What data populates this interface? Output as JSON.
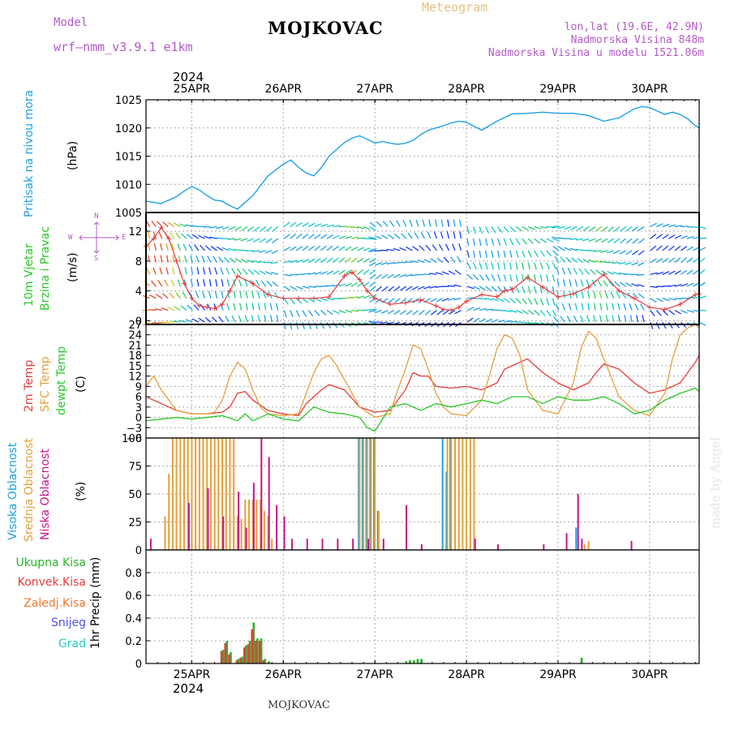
{
  "header": {
    "model_label": "Model",
    "model_name": "wrf–nmm_v3.9.1  e1km",
    "station": "MOJKOVAC",
    "product": "Meteogram",
    "lonlat": "lon,lat (19.6E, 42.9N)",
    "elevation": "Nadmorska Visina 848m",
    "model_elevation": "Nadmorska Visina u modelu 1521.06m",
    "footer_station": "MOJKOVAC",
    "watermark": "made by Angel"
  },
  "time_axis": {
    "year": "2024",
    "days": [
      "25APR",
      "26APR",
      "27APR",
      "28APR",
      "29APR",
      "30APR"
    ],
    "start_hour_offset": -12,
    "end_hour_offset": 133
  },
  "colors": {
    "pressure": "#1ea0e6",
    "temp_2m": "#e63c3c",
    "temp_sfc": "#e6a03c",
    "dewpoint": "#28c828",
    "cloud_high": "#1ea0e6",
    "cloud_mid": "#e6a03c",
    "cloud_low": "#c8148c",
    "rain_total": "#28b428",
    "rain_conv": "#e63c3c",
    "rain_frz": "#f07832",
    "snow": "#5050e6",
    "hail": "#28c8c8"
  },
  "chart_data": [
    {
      "type": "line",
      "ylabel_1": "Pritisak na nivou mora",
      "ylabel_unit": "(hPa)",
      "ylim": [
        1005,
        1025
      ],
      "yticks": [
        "1005",
        "1010",
        "1015",
        "1020",
        "1025"
      ],
      "series": [
        {
          "x": [
            -12,
            -8,
            -4,
            -2,
            0,
            2,
            4,
            6,
            8,
            10,
            12,
            16,
            20,
            24,
            26,
            28,
            30,
            32,
            34,
            36,
            38,
            40,
            42,
            44,
            46,
            48,
            50,
            52,
            54,
            56,
            58,
            60,
            62,
            64,
            66,
            68,
            70,
            72,
            76,
            80,
            84,
            88,
            92,
            96,
            100,
            104,
            108,
            112,
            114,
            116,
            118,
            120,
            122,
            124,
            126,
            128,
            130,
            132,
            133
          ],
          "values": [
            1007,
            1006.6,
            1007.8,
            1008.8,
            1009.6,
            1009,
            1008,
            1007.2,
            1007,
            1006.2,
            1005.6,
            1008,
            1011.5,
            1013.6,
            1014.3,
            1013,
            1012,
            1011.5,
            1013,
            1015,
            1016.2,
            1017.4,
            1018.2,
            1018.6,
            1018,
            1017.3,
            1017.6,
            1017.3,
            1017.1,
            1017.3,
            1017.8,
            1018.8,
            1019.6,
            1020,
            1020.4,
            1020.9,
            1021.2,
            1021,
            1019.6,
            1021.2,
            1022.5,
            1022.6,
            1022.8,
            1022.6,
            1022.6,
            1022.2,
            1021.2,
            1021.8,
            1022.6,
            1023.4,
            1023.8,
            1023.6,
            1023,
            1022.4,
            1022.8,
            1022.4,
            1021.6,
            1020.4,
            1020
          ]
        }
      ]
    },
    {
      "type": "line",
      "ylabel_1": "10m Vjetar",
      "ylabel_2": "Brzina i Pravac",
      "ylabel_unit": "(m/s)",
      "compass": [
        "N",
        "W",
        "E",
        "S"
      ],
      "ylim": [
        -0.5,
        14.5
      ],
      "yticks": [
        "0",
        "4",
        "8",
        "12"
      ],
      "series": [
        {
          "name": "speed",
          "x": [
            -12,
            -10,
            -8,
            -6,
            -4,
            -2,
            0,
            2,
            4,
            6,
            8,
            10,
            12,
            16,
            20,
            24,
            28,
            32,
            36,
            40,
            42,
            44,
            46,
            48,
            52,
            56,
            60,
            64,
            66,
            68,
            70,
            72,
            76,
            80,
            82,
            84,
            88,
            92,
            96,
            100,
            104,
            108,
            112,
            116,
            120,
            124,
            128,
            132,
            133
          ],
          "values": [
            10,
            11,
            12.5,
            11,
            8,
            5,
            3,
            2,
            1.8,
            1.6,
            2.2,
            4,
            6,
            5,
            3.5,
            3,
            3,
            3,
            3.2,
            6,
            6.5,
            5.5,
            4,
            3,
            2.2,
            2.4,
            2.8,
            2,
            1.5,
            1.4,
            1.8,
            2.6,
            3.5,
            3.2,
            4,
            4.2,
            5.8,
            4.5,
            3.2,
            3.6,
            4.5,
            6.2,
            4,
            3,
            1.8,
            1.5,
            2.2,
            3.5,
            3.6
          ]
        }
      ]
    },
    {
      "type": "line",
      "ylabel_1": "2m Temp",
      "ylabel_2": "SFC Temp",
      "ylabel_3": "dewpt Temp",
      "ylabel_unit": "(C)",
      "ylim": [
        -6,
        27
      ],
      "yticks": [
        "−6",
        "−3",
        "0",
        "3",
        "6",
        "9",
        "12",
        "15",
        "18",
        "21",
        "24",
        "27"
      ],
      "series": [
        {
          "name": "2m Temp",
          "x": [
            -12,
            -8,
            -4,
            0,
            4,
            8,
            10,
            12,
            14,
            16,
            20,
            24,
            28,
            30,
            32,
            34,
            36,
            40,
            44,
            48,
            52,
            56,
            58,
            60,
            62,
            64,
            68,
            72,
            76,
            80,
            82,
            84,
            88,
            92,
            96,
            100,
            104,
            106,
            108,
            112,
            116,
            120,
            124,
            128,
            132,
            133
          ],
          "values": [
            6,
            4,
            2,
            1,
            1,
            1.5,
            3,
            7,
            7.5,
            5,
            2,
            1,
            0.5,
            4,
            6,
            8,
            9.5,
            8,
            3,
            1.5,
            2,
            8,
            13,
            12,
            12,
            9,
            8.5,
            9,
            8,
            10,
            14,
            15,
            17,
            13,
            10,
            8,
            10,
            13,
            15.5,
            14,
            10,
            7,
            8,
            10,
            16,
            18
          ]
        },
        {
          "name": "SFC Temp",
          "x": [
            -12,
            -10,
            -8,
            -4,
            0,
            4,
            6,
            8,
            10,
            12,
            14,
            16,
            18,
            20,
            24,
            28,
            30,
            32,
            34,
            36,
            38,
            40,
            44,
            48,
            52,
            54,
            56,
            58,
            60,
            62,
            64,
            66,
            68,
            72,
            76,
            78,
            80,
            82,
            84,
            86,
            88,
            92,
            96,
            100,
            102,
            104,
            106,
            108,
            112,
            116,
            120,
            124,
            126,
            128,
            130,
            132,
            133
          ],
          "values": [
            9,
            12,
            8,
            2,
            1,
            1,
            1.5,
            5,
            12,
            16,
            14,
            8,
            3,
            1,
            0.5,
            1,
            7,
            13,
            17,
            18,
            15,
            11,
            3,
            0,
            1,
            8,
            14,
            21,
            20,
            14,
            7,
            3,
            1,
            0.5,
            5,
            12,
            20,
            24,
            23,
            18,
            8,
            2,
            1,
            10,
            20,
            25,
            23,
            17,
            6,
            2,
            0.5,
            7,
            17,
            24,
            26,
            27,
            26
          ]
        },
        {
          "name": "dewpt Temp",
          "x": [
            -12,
            -8,
            -4,
            0,
            4,
            8,
            12,
            14,
            16,
            20,
            24,
            28,
            32,
            36,
            40,
            44,
            46,
            48,
            52,
            56,
            60,
            64,
            68,
            72,
            76,
            80,
            84,
            88,
            92,
            96,
            100,
            104,
            108,
            112,
            116,
            120,
            124,
            128,
            132,
            133
          ],
          "values": [
            -1,
            -0.5,
            0,
            -0.5,
            0,
            0.5,
            -1,
            1,
            -1,
            1,
            -0.5,
            -1,
            3,
            1.5,
            1,
            0,
            -3,
            -4,
            3,
            4,
            2,
            4,
            3,
            4,
            5,
            4,
            6,
            6,
            4,
            6,
            5,
            5,
            6,
            4,
            1,
            2,
            5,
            7,
            8.5,
            7.5
          ]
        }
      ]
    },
    {
      "type": "bar",
      "ylabel_1": "Visoka Oblacnost",
      "ylabel_2": "Srednja Oblacnost",
      "ylabel_3": "Niska Oblacnost",
      "ylabel_unit": "(%)",
      "ylim": [
        0,
        100
      ],
      "yticks": [
        "0",
        "25",
        "50",
        "75",
        "100"
      ],
      "series": [
        {
          "name": "Visoka Oblacnost",
          "x": [
            44,
            45,
            46,
            47,
            48,
            49,
            66,
            67,
            68,
            101
          ],
          "values": [
            100,
            100,
            100,
            100,
            100,
            35,
            100,
            70,
            100,
            20
          ]
        },
        {
          "name": "Srednja Oblacnost",
          "x": [
            -7,
            -6,
            -5,
            -4,
            -3,
            -2,
            -1,
            0,
            1,
            2,
            3,
            4,
            5,
            6,
            7,
            8,
            9,
            10,
            11,
            12,
            13,
            14,
            15,
            16,
            17,
            18,
            19,
            20,
            21,
            44,
            45,
            46,
            47,
            48,
            49,
            67,
            68,
            69,
            70,
            71,
            72,
            73,
            74,
            103,
            104
          ],
          "values": [
            30,
            68,
            100,
            100,
            100,
            100,
            100,
            100,
            100,
            100,
            100,
            100,
            100,
            100,
            100,
            100,
            100,
            100,
            100,
            30,
            28,
            45,
            45,
            45,
            45,
            45,
            35,
            30,
            10,
            100,
            100,
            100,
            100,
            100,
            35,
            100,
            100,
            100,
            100,
            100,
            100,
            100,
            100,
            5,
            8
          ]
        },
        {
          "name": "Niska Oblacnost",
          "x": [
            -11,
            -1,
            4,
            8,
            12,
            14,
            16,
            18,
            20,
            22,
            24,
            26,
            30,
            34,
            38,
            42,
            46,
            50,
            56,
            60,
            74,
            80,
            92,
            98,
            101,
            102,
            115
          ],
          "values": [
            10,
            42,
            55,
            30,
            52,
            20,
            60,
            100,
            83,
            40,
            30,
            10,
            10,
            10,
            10,
            10,
            10,
            10,
            40,
            5,
            10,
            5,
            5,
            15,
            50,
            10,
            8
          ]
        }
      ]
    },
    {
      "type": "bar",
      "ylabel_unit": "1hr Precip (mm)",
      "legend": [
        "Ukupna Kisa",
        "Konvek.Kisa",
        "Zaledj.Kisa",
        "Snijeg",
        "Grad"
      ],
      "ylim": [
        0,
        1
      ],
      "yticks": [
        "0",
        "0.2",
        "0.4",
        "0.6",
        "0.8"
      ],
      "series": [
        {
          "name": "Ukupna Kisa",
          "x": [
            8,
            9,
            10,
            12,
            13,
            14,
            15,
            16,
            17,
            18,
            19,
            20,
            56,
            57,
            58,
            59,
            60,
            102
          ],
          "values": [
            0.12,
            0.2,
            0.1,
            0.04,
            0.06,
            0.16,
            0.2,
            0.36,
            0.22,
            0.22,
            0.04,
            0.02,
            0.02,
            0.03,
            0.03,
            0.04,
            0.04,
            0.05
          ]
        },
        {
          "name": "Konvek.Kisa",
          "x": [
            8,
            9,
            10,
            12,
            13,
            14,
            15,
            16,
            17,
            18,
            19
          ],
          "values": [
            0.11,
            0.18,
            0.08,
            0.03,
            0.05,
            0.14,
            0.17,
            0.3,
            0.2,
            0.2,
            0.03
          ]
        }
      ]
    }
  ]
}
